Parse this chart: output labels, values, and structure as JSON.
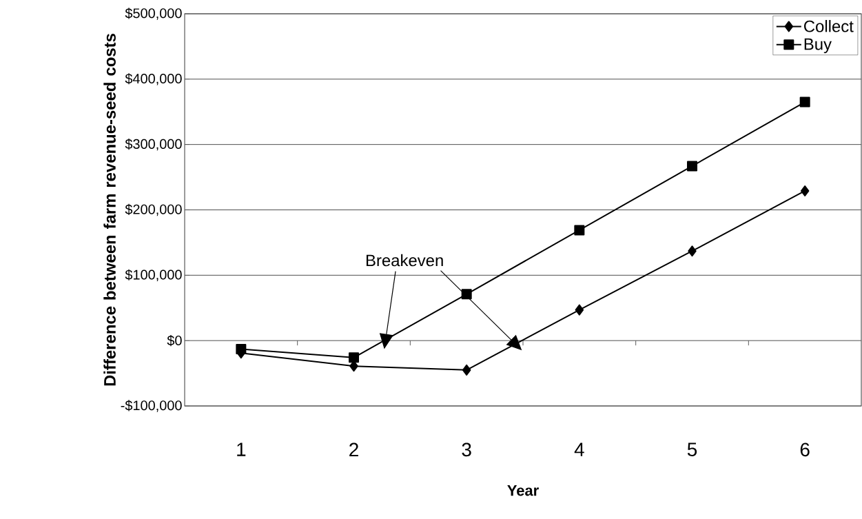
{
  "chart_data": {
    "type": "line",
    "xlabel": "Year",
    "ylabel": "Difference between farm revenue-seed costs",
    "categories": [
      "1",
      "2",
      "3",
      "4",
      "5",
      "6"
    ],
    "series": [
      {
        "name": "Collect",
        "color": "#000000",
        "marker": "diamond",
        "values": [
          -19000,
          -39000,
          -45000,
          47000,
          137000,
          229000
        ]
      },
      {
        "name": "Buy",
        "color": "#000000",
        "marker": "square",
        "values": [
          -13000,
          -26000,
          71000,
          169000,
          267000,
          365000
        ]
      }
    ],
    "ylim": [
      -100000,
      500000
    ],
    "yticks": [
      {
        "value": -100000,
        "label": "-$100,000"
      },
      {
        "value": 0,
        "label": "$0"
      },
      {
        "value": 100000,
        "label": "$100,000"
      },
      {
        "value": 200000,
        "label": "$200,000"
      },
      {
        "value": 300000,
        "label": "$300,000"
      },
      {
        "value": 400000,
        "label": "$400,000"
      },
      {
        "value": 500000,
        "label": "$500,000"
      }
    ],
    "grid": "y",
    "legend": "top right",
    "line_style": "solid",
    "annotations": [
      "Breakeven"
    ]
  }
}
